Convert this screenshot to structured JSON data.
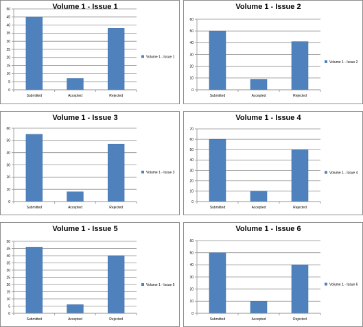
{
  "colors": {
    "bar": "#4f81bd",
    "grid": "#8c8c8c",
    "border": "#8c8c8c"
  },
  "chart_data": [
    {
      "type": "bar",
      "title": "Volume 1 - Issue 1",
      "categories": [
        "Submitted",
        "Accepted",
        "Rejected"
      ],
      "series": [
        {
          "name": "Volume 1 - Issue 1",
          "values": [
            45,
            7,
            38
          ]
        }
      ],
      "ylim": [
        0,
        50
      ],
      "yticks": [
        0,
        5,
        10,
        15,
        20,
        25,
        30,
        35,
        40,
        45,
        50
      ],
      "grid": true,
      "legend": "right"
    },
    {
      "type": "bar",
      "title": "Volume 1 - Issue 2",
      "categories": [
        "Submitted",
        "Accepted",
        "Rejected"
      ],
      "series": [
        {
          "name": "Volume 1 - Issue 2",
          "values": [
            50,
            9,
            41
          ]
        }
      ],
      "ylim": [
        0,
        60
      ],
      "yticks": [
        0,
        10,
        20,
        30,
        40,
        50,
        60
      ],
      "grid": true,
      "legend": "right"
    },
    {
      "type": "bar",
      "title": "Volume 1 - Issue 3",
      "categories": [
        "Submitted",
        "Accepted",
        "Rejected"
      ],
      "series": [
        {
          "name": "Volume 1 - Issue 3",
          "values": [
            55,
            8,
            47
          ]
        }
      ],
      "ylim": [
        0,
        60
      ],
      "yticks": [
        0,
        10,
        20,
        30,
        40,
        50,
        60
      ],
      "grid": true,
      "legend": "right"
    },
    {
      "type": "bar",
      "title": "Volume 1 - Issue 4",
      "categories": [
        "Submitted",
        "Accepted",
        "Rejected"
      ],
      "series": [
        {
          "name": "Volume 1 - Issue 4",
          "values": [
            60,
            10,
            50
          ]
        }
      ],
      "ylim": [
        0,
        70
      ],
      "yticks": [
        0,
        10,
        20,
        30,
        40,
        50,
        60,
        70
      ],
      "grid": true,
      "legend": "right"
    },
    {
      "type": "bar",
      "title": "Volume 1 - Issue 5",
      "categories": [
        "Submitted",
        "Accepted",
        "Rejected"
      ],
      "series": [
        {
          "name": "Volume 1 - Issue 5",
          "values": [
            46,
            6,
            40
          ]
        }
      ],
      "ylim": [
        0,
        50
      ],
      "yticks": [
        0,
        5,
        10,
        15,
        20,
        25,
        30,
        35,
        40,
        45,
        50
      ],
      "grid": true,
      "legend": "right"
    },
    {
      "type": "bar",
      "title": "Volume 1 - Issue 6",
      "categories": [
        "Submitted",
        "Accepted",
        "Rejected"
      ],
      "series": [
        {
          "name": "Volume 1 - Issue 6",
          "values": [
            50,
            10,
            40
          ]
        }
      ],
      "ylim": [
        0,
        60
      ],
      "yticks": [
        0,
        10,
        20,
        30,
        40,
        50,
        60
      ],
      "grid": true,
      "legend": "right"
    }
  ]
}
